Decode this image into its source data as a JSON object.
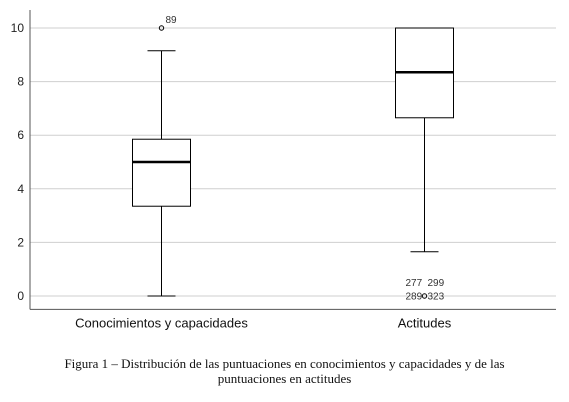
{
  "chart_data": {
    "type": "boxplot",
    "ylim": [
      -0.5,
      10.6
    ],
    "yticks": [
      0,
      2,
      4,
      6,
      8,
      10
    ],
    "grid": true,
    "groups": [
      {
        "label": "Conocimientos y capacidades",
        "min": 0,
        "q1": 3.35,
        "median": 5.0,
        "q3": 5.85,
        "max": 9.15,
        "outliers": [
          {
            "value": 10,
            "label": "89"
          }
        ]
      },
      {
        "label": "Actitudes",
        "min": 1.65,
        "q1": 6.65,
        "median": 8.35,
        "q3": 10.0,
        "max": 10.0,
        "outliers": [
          {
            "value": 0,
            "labels": [
              "277",
              "299",
              "289",
              "323"
            ]
          }
        ]
      }
    ]
  },
  "caption": {
    "line1": "Figura 1 – Distribución de las puntuaciones en conocimientos y capacidades y de las",
    "line2": "puntuaciones en actitudes"
  }
}
